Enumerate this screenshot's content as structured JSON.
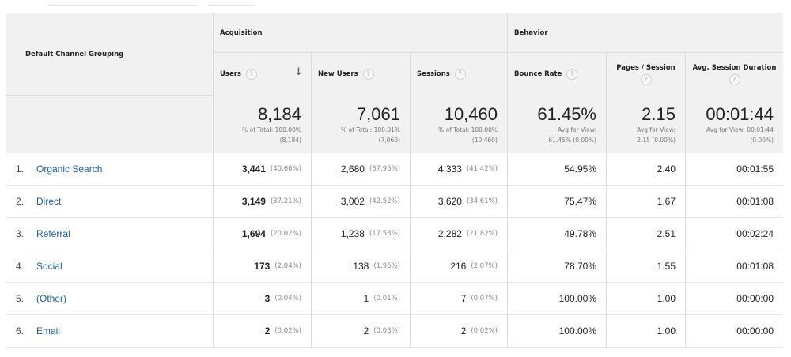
{
  "table": {
    "dimension_header": "Default Channel Grouping",
    "groups": {
      "acquisition": "Acquisition",
      "behavior": "Behavior"
    },
    "columns": {
      "users": "Users",
      "new_users": "New Users",
      "sessions": "Sessions",
      "bounce_rate": "Bounce Rate",
      "pages_session": "Pages / Session",
      "avg_duration": "Avg. Session Duration"
    },
    "help_glyph": "?",
    "sort_glyph": "↓",
    "totals": {
      "users": {
        "value": "8,184",
        "sub1": "% of Total: 100.00%",
        "sub2": "(8,184)"
      },
      "new_users": {
        "value": "7,061",
        "sub1": "% of Total: 100.01%",
        "sub2": "(7,060)"
      },
      "sessions": {
        "value": "10,460",
        "sub1": "% of Total: 100.00%",
        "sub2": "(10,460)"
      },
      "bounce_rate": {
        "value": "61.45%",
        "sub1": "Avg for View:",
        "sub2": "61.45% (0.00%)"
      },
      "pages_session": {
        "value": "2.15",
        "sub1": "Avg for View:",
        "sub2": "2.15 (0.00%)"
      },
      "avg_duration": {
        "value": "00:01:44",
        "sub1": "Avg for View: 00:01:44",
        "sub2": "(0.00%)"
      }
    },
    "rows": [
      {
        "index": "1.",
        "channel": "Organic Search",
        "users": "3,441",
        "users_pct": "(40.66%)",
        "new_users": "2,680",
        "new_users_pct": "(37.95%)",
        "sessions": "4,333",
        "sessions_pct": "(41.42%)",
        "bounce_rate": "54.95%",
        "pages_session": "2.40",
        "avg_duration": "00:01:55"
      },
      {
        "index": "2.",
        "channel": "Direct",
        "users": "3,149",
        "users_pct": "(37.21%)",
        "new_users": "3,002",
        "new_users_pct": "(42.52%)",
        "sessions": "3,620",
        "sessions_pct": "(34.61%)",
        "bounce_rate": "75.47%",
        "pages_session": "1.67",
        "avg_duration": "00:01:08"
      },
      {
        "index": "3.",
        "channel": "Referral",
        "users": "1,694",
        "users_pct": "(20.02%)",
        "new_users": "1,238",
        "new_users_pct": "(17.53%)",
        "sessions": "2,282",
        "sessions_pct": "(21.82%)",
        "bounce_rate": "49.78%",
        "pages_session": "2.51",
        "avg_duration": "00:02:24"
      },
      {
        "index": "4.",
        "channel": "Social",
        "users": "173",
        "users_pct": "(2.04%)",
        "new_users": "138",
        "new_users_pct": "(1.95%)",
        "sessions": "216",
        "sessions_pct": "(2.07%)",
        "bounce_rate": "78.70%",
        "pages_session": "1.55",
        "avg_duration": "00:01:08"
      },
      {
        "index": "5.",
        "channel": "(Other)",
        "users": "3",
        "users_pct": "(0.04%)",
        "new_users": "1",
        "new_users_pct": "(0.01%)",
        "sessions": "7",
        "sessions_pct": "(0.07%)",
        "bounce_rate": "100.00%",
        "pages_session": "1.00",
        "avg_duration": "00:00:00"
      },
      {
        "index": "6.",
        "channel": "Email",
        "users": "2",
        "users_pct": "(0.02%)",
        "new_users": "2",
        "new_users_pct": "(0.03%)",
        "sessions": "2",
        "sessions_pct": "(0.02%)",
        "bounce_rate": "100.00%",
        "pages_session": "1.00",
        "avg_duration": "00:00:00"
      }
    ]
  },
  "colors": {
    "link": "#1a5fa6",
    "header_bg": "#f1f1f1",
    "border": "#dcdcdc"
  }
}
